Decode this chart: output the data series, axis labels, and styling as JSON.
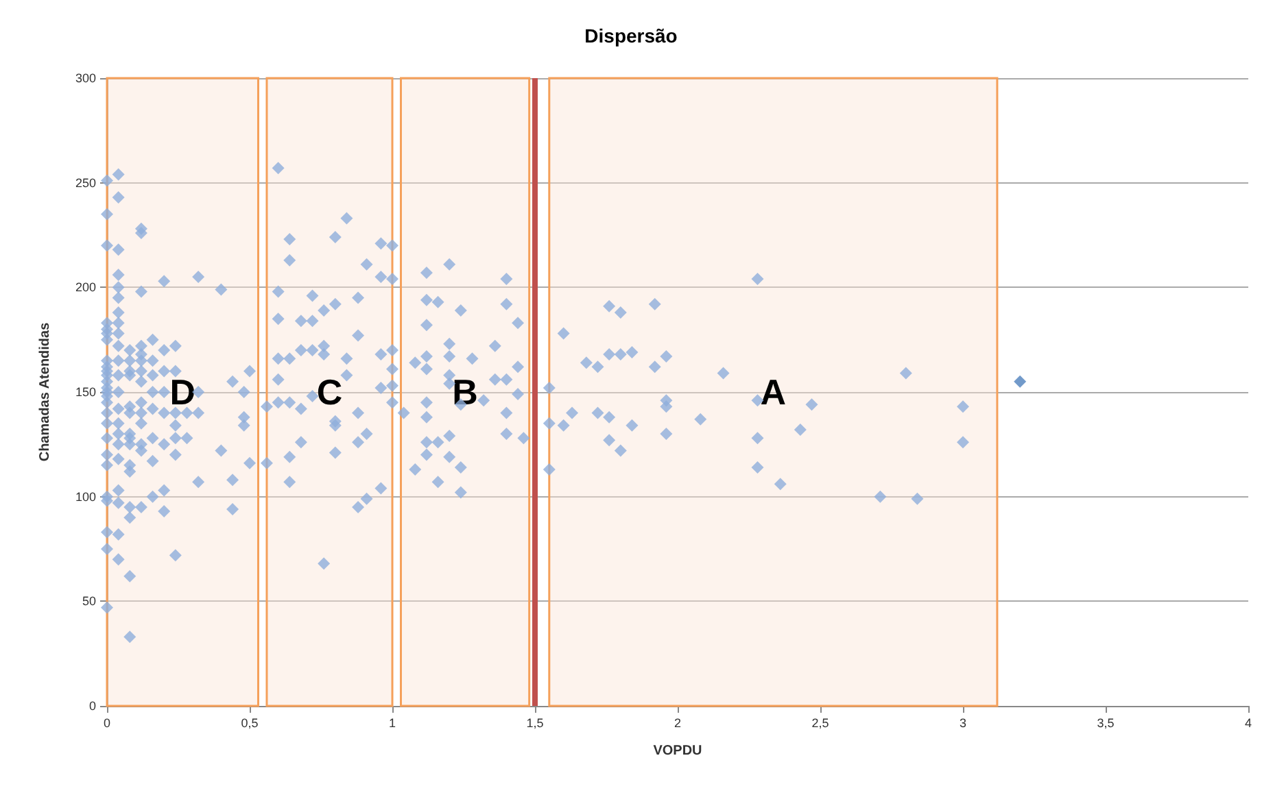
{
  "chart_data": {
    "type": "scatter",
    "title": "Dispersão",
    "xlabel": "VOPDU",
    "ylabel": "Chamadas Atendidas",
    "xlim": [
      0,
      4
    ],
    "ylim": [
      0,
      300
    ],
    "xticks": [
      0,
      {
        "value": 0.5,
        "label": "0,5"
      },
      1,
      {
        "value": 1.5,
        "label": "1,5"
      },
      2,
      {
        "value": 2.5,
        "label": "2,5"
      },
      3,
      {
        "value": 3.5,
        "label": "3,5"
      },
      4
    ],
    "yticks": [
      0,
      50,
      100,
      150,
      200,
      250,
      300
    ],
    "grid": "y",
    "marker": "diamond",
    "ref_lines": [
      {
        "axis": "x",
        "value": 1.5,
        "label": null,
        "color": "#c0504d"
      }
    ],
    "bands": [
      {
        "axis": "x",
        "from": 0,
        "to": 0.53,
        "label": "D",
        "color": "#f5a05a"
      },
      {
        "axis": "x",
        "from": 0.56,
        "to": 1.0,
        "label": "C",
        "color": "#f5a05a"
      },
      {
        "axis": "x",
        "from": 1.03,
        "to": 1.48,
        "label": "B",
        "color": "#f5a05a"
      },
      {
        "axis": "x",
        "from": 1.55,
        "to": 3.12,
        "label": "A",
        "color": "#f5a05a"
      }
    ],
    "series": [
      {
        "color": "#8eaedb",
        "x": [
          0,
          0,
          0,
          0,
          0,
          0,
          0,
          0,
          0,
          0,
          0,
          0,
          0,
          0,
          0,
          0,
          0,
          0,
          0,
          0,
          0,
          0,
          0,
          0,
          0,
          0,
          0.04,
          0.04,
          0.04,
          0.04,
          0.04,
          0.04,
          0.04,
          0.04,
          0.04,
          0.04,
          0.04,
          0.04,
          0.04,
          0.04,
          0.04,
          0.04,
          0.04,
          0.04,
          0.04,
          0.04,
          0.04,
          0.04,
          0.08,
          0.08,
          0.08,
          0.08,
          0.08,
          0.08,
          0.08,
          0.08,
          0.08,
          0.08,
          0.08,
          0.08,
          0.08,
          0.08,
          0.08,
          0.12,
          0.12,
          0.12,
          0.12,
          0.12,
          0.12,
          0.12,
          0.12,
          0.12,
          0.12,
          0.12,
          0.12,
          0.12,
          0.12,
          0.16,
          0.16,
          0.16,
          0.16,
          0.16,
          0.16,
          0.16,
          0.16,
          0.2,
          0.2,
          0.2,
          0.2,
          0.2,
          0.2,
          0.2,
          0.2,
          0.24,
          0.24,
          0.24,
          0.24,
          0.24,
          0.24,
          0.24,
          0.28,
          0.28,
          0.32,
          0.32,
          0.32,
          0.32,
          0.4,
          0.4,
          0.44,
          0.44,
          0.44,
          0.48,
          0.48,
          0.48,
          0.5,
          0.5,
          0.6,
          0.64,
          0.64,
          0.8,
          0.84,
          0.96,
          1.0,
          0.91,
          0.96,
          1.0,
          0.6,
          0.6,
          0.72,
          0.68,
          0.72,
          0.76,
          0.8,
          0.88,
          0.88,
          0.6,
          0.64,
          0.68,
          0.72,
          0.76,
          0.76,
          0.84,
          0.96,
          1.0,
          0.6,
          0.84,
          1.0,
          0.96,
          1.0,
          0.6,
          0.64,
          0.68,
          0.72,
          0.56,
          1.0,
          0.8,
          0.8,
          0.88,
          0.68,
          0.64,
          0.8,
          0.88,
          0.91,
          0.64,
          0.56,
          0.88,
          0.91,
          0.96,
          0.76,
          1.04,
          1.12,
          1.2,
          1.4,
          1.12,
          1.16,
          1.24,
          1.12,
          1.4,
          1.44,
          1.2,
          1.36,
          1.08,
          1.12,
          1.12,
          1.2,
          1.28,
          1.2,
          1.2,
          1.36,
          1.4,
          1.44,
          1.44,
          1.24,
          1.32,
          1.12,
          1.12,
          1.4,
          1.4,
          1.12,
          1.16,
          1.2,
          1.12,
          1.2,
          1.08,
          1.24,
          1.16,
          1.24,
          1.46,
          2.28,
          1.76,
          1.8,
          1.92,
          1.6,
          1.68,
          1.72,
          1.76,
          1.8,
          1.84,
          1.92,
          1.96,
          2.16,
          2.8,
          1.55,
          1.96,
          1.96,
          2.28,
          2.47,
          3.0,
          1.63,
          1.72,
          1.76,
          1.55,
          1.6,
          1.84,
          2.08,
          1.96,
          2.43,
          1.76,
          2.28,
          3.0,
          1.8,
          1.55,
          2.28,
          2.36,
          2.71,
          2.84
        ],
        "values": [
          251,
          235,
          220,
          183,
          180,
          178,
          175,
          165,
          162,
          160,
          158,
          155,
          152,
          150,
          148,
          145,
          140,
          135,
          128,
          120,
          115,
          100,
          98,
          83,
          75,
          47,
          254,
          243,
          218,
          206,
          200,
          195,
          188,
          183,
          178,
          172,
          165,
          158,
          150,
          142,
          135,
          130,
          125,
          118,
          103,
          97,
          82,
          70,
          170,
          165,
          160,
          158,
          143,
          140,
          130,
          128,
          125,
          115,
          112,
          95,
          90,
          62,
          33,
          228,
          226,
          198,
          172,
          168,
          165,
          160,
          155,
          145,
          140,
          135,
          125,
          122,
          95,
          175,
          165,
          158,
          150,
          142,
          128,
          117,
          100,
          203,
          170,
          160,
          150,
          140,
          125,
          103,
          93,
          172,
          160,
          140,
          134,
          128,
          120,
          72,
          140,
          128,
          205,
          150,
          140,
          107,
          199,
          122,
          155,
          108,
          94,
          150,
          138,
          134,
          160,
          116,
          257,
          223,
          213,
          224,
          233,
          221,
          220,
          211,
          205,
          204,
          198,
          185,
          196,
          184,
          184,
          189,
          192,
          195,
          177,
          166,
          166,
          170,
          170,
          172,
          168,
          166,
          168,
          170,
          156,
          158,
          161,
          152,
          153,
          145,
          145,
          142,
          148,
          143,
          145,
          136,
          134,
          140,
          126,
          119,
          121,
          126,
          130,
          107,
          116,
          95,
          99,
          104,
          68,
          140,
          207,
          211,
          204,
          194,
          193,
          189,
          182,
          192,
          183,
          173,
          172,
          164,
          167,
          161,
          167,
          166,
          158,
          154,
          156,
          156,
          162,
          149,
          144,
          146,
          145,
          138,
          140,
          130,
          126,
          126,
          129,
          120,
          119,
          113,
          114,
          107,
          102,
          128,
          204,
          191,
          188,
          192,
          178,
          164,
          162,
          168,
          168,
          169,
          162,
          167,
          159,
          159,
          152,
          146,
          143,
          146,
          144,
          143,
          140,
          140,
          138,
          135,
          134,
          134,
          137,
          130,
          132,
          127,
          128,
          126,
          122,
          113,
          114,
          106,
          100,
          99
        ]
      },
      {
        "color": "#4f81bd",
        "x": [
          3.2
        ],
        "values": [
          155
        ]
      }
    ]
  }
}
